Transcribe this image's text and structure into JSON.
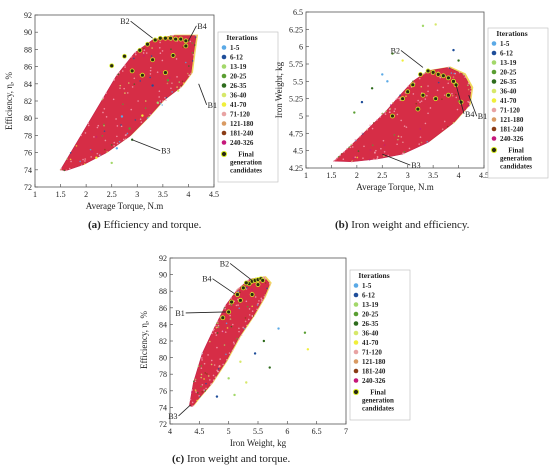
{
  "captions": {
    "a": {
      "letter": "(a)",
      "text": " Efficiency and torque."
    },
    "b": {
      "letter": "(b)",
      "text": " Iron weight and efficiency."
    },
    "c": {
      "letter": "(c)",
      "text": " Iron weight and torque."
    }
  },
  "chart_data": [
    {
      "type": "scatter",
      "panel": "a",
      "xlabel": "Average Torque, N.m",
      "ylabel": "Efficiency, η, %",
      "xlim": [
        1,
        4.5
      ],
      "ylim": [
        72,
        92
      ],
      "xticks": [
        "1",
        "1.5",
        "2",
        "2.5",
        "3",
        "3.5",
        "4",
        "4.5"
      ],
      "yticks": [
        "72",
        "74",
        "76",
        "78",
        "80",
        "82",
        "84",
        "86",
        "88",
        "90",
        "92"
      ],
      "legend_title": "Iterations",
      "legend_position": "right",
      "cloud": [
        [
          1.5,
          74
        ],
        [
          1.9,
          78
        ],
        [
          2.3,
          82
        ],
        [
          2.6,
          85
        ],
        [
          2.95,
          87.6
        ],
        [
          3.3,
          89.1
        ],
        [
          3.7,
          89.6
        ],
        [
          4.15,
          89.6
        ],
        [
          4.1,
          87.5
        ],
        [
          4.05,
          85.2
        ],
        [
          3.85,
          83.6
        ],
        [
          3.5,
          82
        ],
        [
          3.2,
          80
        ],
        [
          2.85,
          77.9
        ],
        [
          2.4,
          76
        ],
        [
          1.95,
          74.6
        ],
        [
          1.6,
          73.9
        ]
      ],
      "scatter_points": [
        [
          2.6,
          76.5
        ],
        [
          2.85,
          78.8
        ],
        [
          3.1,
          80.3
        ],
        [
          3.4,
          81.8
        ],
        [
          3.8,
          83.2
        ],
        [
          3.3,
          83.8
        ],
        [
          2.9,
          77.5
        ],
        [
          2.7,
          80.2
        ],
        [
          3.6,
          84.4
        ],
        [
          2.2,
          75.4
        ],
        [
          2.5,
          74.8
        ]
      ],
      "final_candidates": [
        [
          2.5,
          86.1
        ],
        [
          2.75,
          87.2
        ],
        [
          2.9,
          85.5
        ],
        [
          3.05,
          87.9
        ],
        [
          3.2,
          88.6
        ],
        [
          3.35,
          89.1
        ],
        [
          3.45,
          89.3
        ],
        [
          3.55,
          89.3
        ],
        [
          3.65,
          89.3
        ],
        [
          3.75,
          89.2
        ],
        [
          3.85,
          89.2
        ],
        [
          3.95,
          89.0
        ],
        [
          3.7,
          87.3
        ],
        [
          3.95,
          88.4
        ],
        [
          3.3,
          86.8
        ],
        [
          3.55,
          85.3
        ],
        [
          3.1,
          85.0
        ]
      ],
      "annotations": [
        {
          "label": "B2",
          "x": 3.3,
          "y": 89.3
        },
        {
          "label": "B4",
          "x": 4.0,
          "y": 89.0
        },
        {
          "label": "B1",
          "x": 4.2,
          "y": 84.0
        },
        {
          "label": "B3",
          "x": 2.9,
          "y": 77.5
        }
      ]
    },
    {
      "type": "scatter",
      "panel": "b",
      "xlabel": "Average Torque, N.m",
      "ylabel": "Iron Weight, kg",
      "xlim": [
        1,
        4.5
      ],
      "ylim": [
        4.25,
        6.5
      ],
      "xticks": [
        "1",
        "1.5",
        "2",
        "2.5",
        "3",
        "3.5",
        "4",
        "4.5"
      ],
      "yticks": [
        "4.25",
        "4.5",
        "4.75",
        "5",
        "5.25",
        "5.5",
        "5.75",
        "6",
        "6.25",
        "6.5"
      ],
      "legend_title": "Iterations",
      "legend_position": "right",
      "cloud": [
        [
          1.55,
          4.35
        ],
        [
          1.85,
          4.55
        ],
        [
          2.2,
          4.8
        ],
        [
          2.55,
          5.05
        ],
        [
          2.85,
          5.3
        ],
        [
          3.1,
          5.5
        ],
        [
          3.4,
          5.65
        ],
        [
          3.8,
          5.7
        ],
        [
          4.1,
          5.6
        ],
        [
          4.25,
          5.4
        ],
        [
          4.2,
          5.15
        ],
        [
          3.9,
          4.9
        ],
        [
          3.4,
          4.62
        ],
        [
          2.9,
          4.45
        ],
        [
          2.4,
          4.38
        ],
        [
          1.9,
          4.34
        ]
      ],
      "scatter_points": [
        [
          2.1,
          5.2
        ],
        [
          2.3,
          5.4
        ],
        [
          2.5,
          5.6
        ],
        [
          2.7,
          5.9
        ],
        [
          2.9,
          5.8
        ],
        [
          3.3,
          6.3
        ],
        [
          3.55,
          6.32
        ],
        [
          3.9,
          5.95
        ],
        [
          4.0,
          5.8
        ],
        [
          2.6,
          5.5
        ],
        [
          1.95,
          5.05
        ]
      ],
      "final_candidates": [
        [
          2.9,
          5.25
        ],
        [
          3.1,
          5.45
        ],
        [
          3.25,
          5.6
        ],
        [
          3.4,
          5.65
        ],
        [
          3.5,
          5.63
        ],
        [
          3.6,
          5.6
        ],
        [
          3.7,
          5.58
        ],
        [
          3.8,
          5.55
        ],
        [
          3.9,
          5.5
        ],
        [
          3.95,
          5.45
        ],
        [
          3.3,
          5.3
        ],
        [
          3.55,
          5.25
        ],
        [
          3.8,
          5.3
        ],
        [
          4.05,
          5.2
        ],
        [
          3.2,
          5.1
        ],
        [
          2.7,
          5.0
        ],
        [
          3.0,
          5.35
        ]
      ],
      "annotations": [
        {
          "label": "B2",
          "x": 3.3,
          "y": 5.7
        },
        {
          "label": "B1",
          "x": 4.2,
          "y": 5.3
        },
        {
          "label": "B4",
          "x": 3.95,
          "y": 5.45
        },
        {
          "label": "B3",
          "x": 2.5,
          "y": 4.45
        }
      ]
    },
    {
      "type": "scatter",
      "panel": "c",
      "xlabel": "Iron Weight, kg",
      "ylabel": "Efficiency, η, %",
      "xlim": [
        4,
        7
      ],
      "ylim": [
        72,
        92
      ],
      "xticks": [
        "4",
        "4.5",
        "5",
        "5.5",
        "6",
        "6.5",
        "7"
      ],
      "yticks": [
        "72",
        "74",
        "76",
        "78",
        "80",
        "82",
        "84",
        "86",
        "88",
        "90",
        "92"
      ],
      "legend_title": "Iterations",
      "legend_position": "right",
      "cloud": [
        [
          4.33,
          74.2
        ],
        [
          4.4,
          77
        ],
        [
          4.55,
          80.5
        ],
        [
          4.75,
          83.5
        ],
        [
          4.95,
          86.3
        ],
        [
          5.15,
          88.2
        ],
        [
          5.35,
          89.4
        ],
        [
          5.6,
          89.7
        ],
        [
          5.7,
          88.9
        ],
        [
          5.6,
          87.2
        ],
        [
          5.42,
          85
        ],
        [
          5.18,
          82.5
        ],
        [
          4.95,
          79.5
        ],
        [
          4.7,
          76.8
        ],
        [
          4.48,
          75
        ],
        [
          4.38,
          74.1
        ]
      ],
      "scatter_points": [
        [
          5.0,
          77.5
        ],
        [
          5.2,
          79.5
        ],
        [
          5.45,
          80.5
        ],
        [
          5.6,
          82
        ],
        [
          5.85,
          83.5
        ],
        [
          6.3,
          83
        ],
        [
          6.35,
          81
        ],
        [
          5.1,
          75.5
        ],
        [
          5.3,
          77
        ],
        [
          4.8,
          75.3
        ],
        [
          5.7,
          78.8
        ]
      ],
      "final_candidates": [
        [
          4.9,
          84.8
        ],
        [
          5.0,
          85.5
        ],
        [
          5.05,
          86.7
        ],
        [
          5.15,
          87.6
        ],
        [
          5.25,
          88.4
        ],
        [
          5.35,
          88.9
        ],
        [
          5.4,
          89.2
        ],
        [
          5.45,
          89.3
        ],
        [
          5.5,
          89.4
        ],
        [
          5.55,
          89.5
        ],
        [
          5.58,
          89.3
        ],
        [
          5.3,
          89.0
        ],
        [
          5.5,
          88.8
        ],
        [
          5.2,
          86.9
        ],
        [
          5.4,
          87.6
        ]
      ],
      "annotations": [
        {
          "label": "B2",
          "x": 5.4,
          "y": 89.3
        },
        {
          "label": "B4",
          "x": 5.1,
          "y": 87.7
        },
        {
          "label": "B1",
          "x": 4.95,
          "y": 85.5
        },
        {
          "label": "B3",
          "x": 4.35,
          "y": 74.3
        }
      ]
    }
  ],
  "legend": {
    "title": "Iterations",
    "items": [
      {
        "label": "1-5",
        "color": "#5aa9e6"
      },
      {
        "label": "6-12",
        "color": "#1f4e9a"
      },
      {
        "label": "13-19",
        "color": "#a3d86a"
      },
      {
        "label": "20-25",
        "color": "#5a9e32"
      },
      {
        "label": "26-35",
        "color": "#2d6b1c"
      },
      {
        "label": "36-40",
        "color": "#d7e86a"
      },
      {
        "label": "41-70",
        "color": "#f0ef3a"
      },
      {
        "label": "71-120",
        "color": "#e8a3a3"
      },
      {
        "label": "121-180",
        "color": "#d99a62"
      },
      {
        "label": "181-240",
        "color": "#8a3c15"
      },
      {
        "label": "240-326",
        "color": "#c5177a"
      }
    ],
    "final_label_1": "Final",
    "final_label_2": "generation",
    "final_label_3": "candidates"
  },
  "colors": {
    "cloud": "#d62d46",
    "cloud_edge": "#f0d44a",
    "final_fill": "#2a2a12",
    "final_edge": "#d9ee2a"
  }
}
